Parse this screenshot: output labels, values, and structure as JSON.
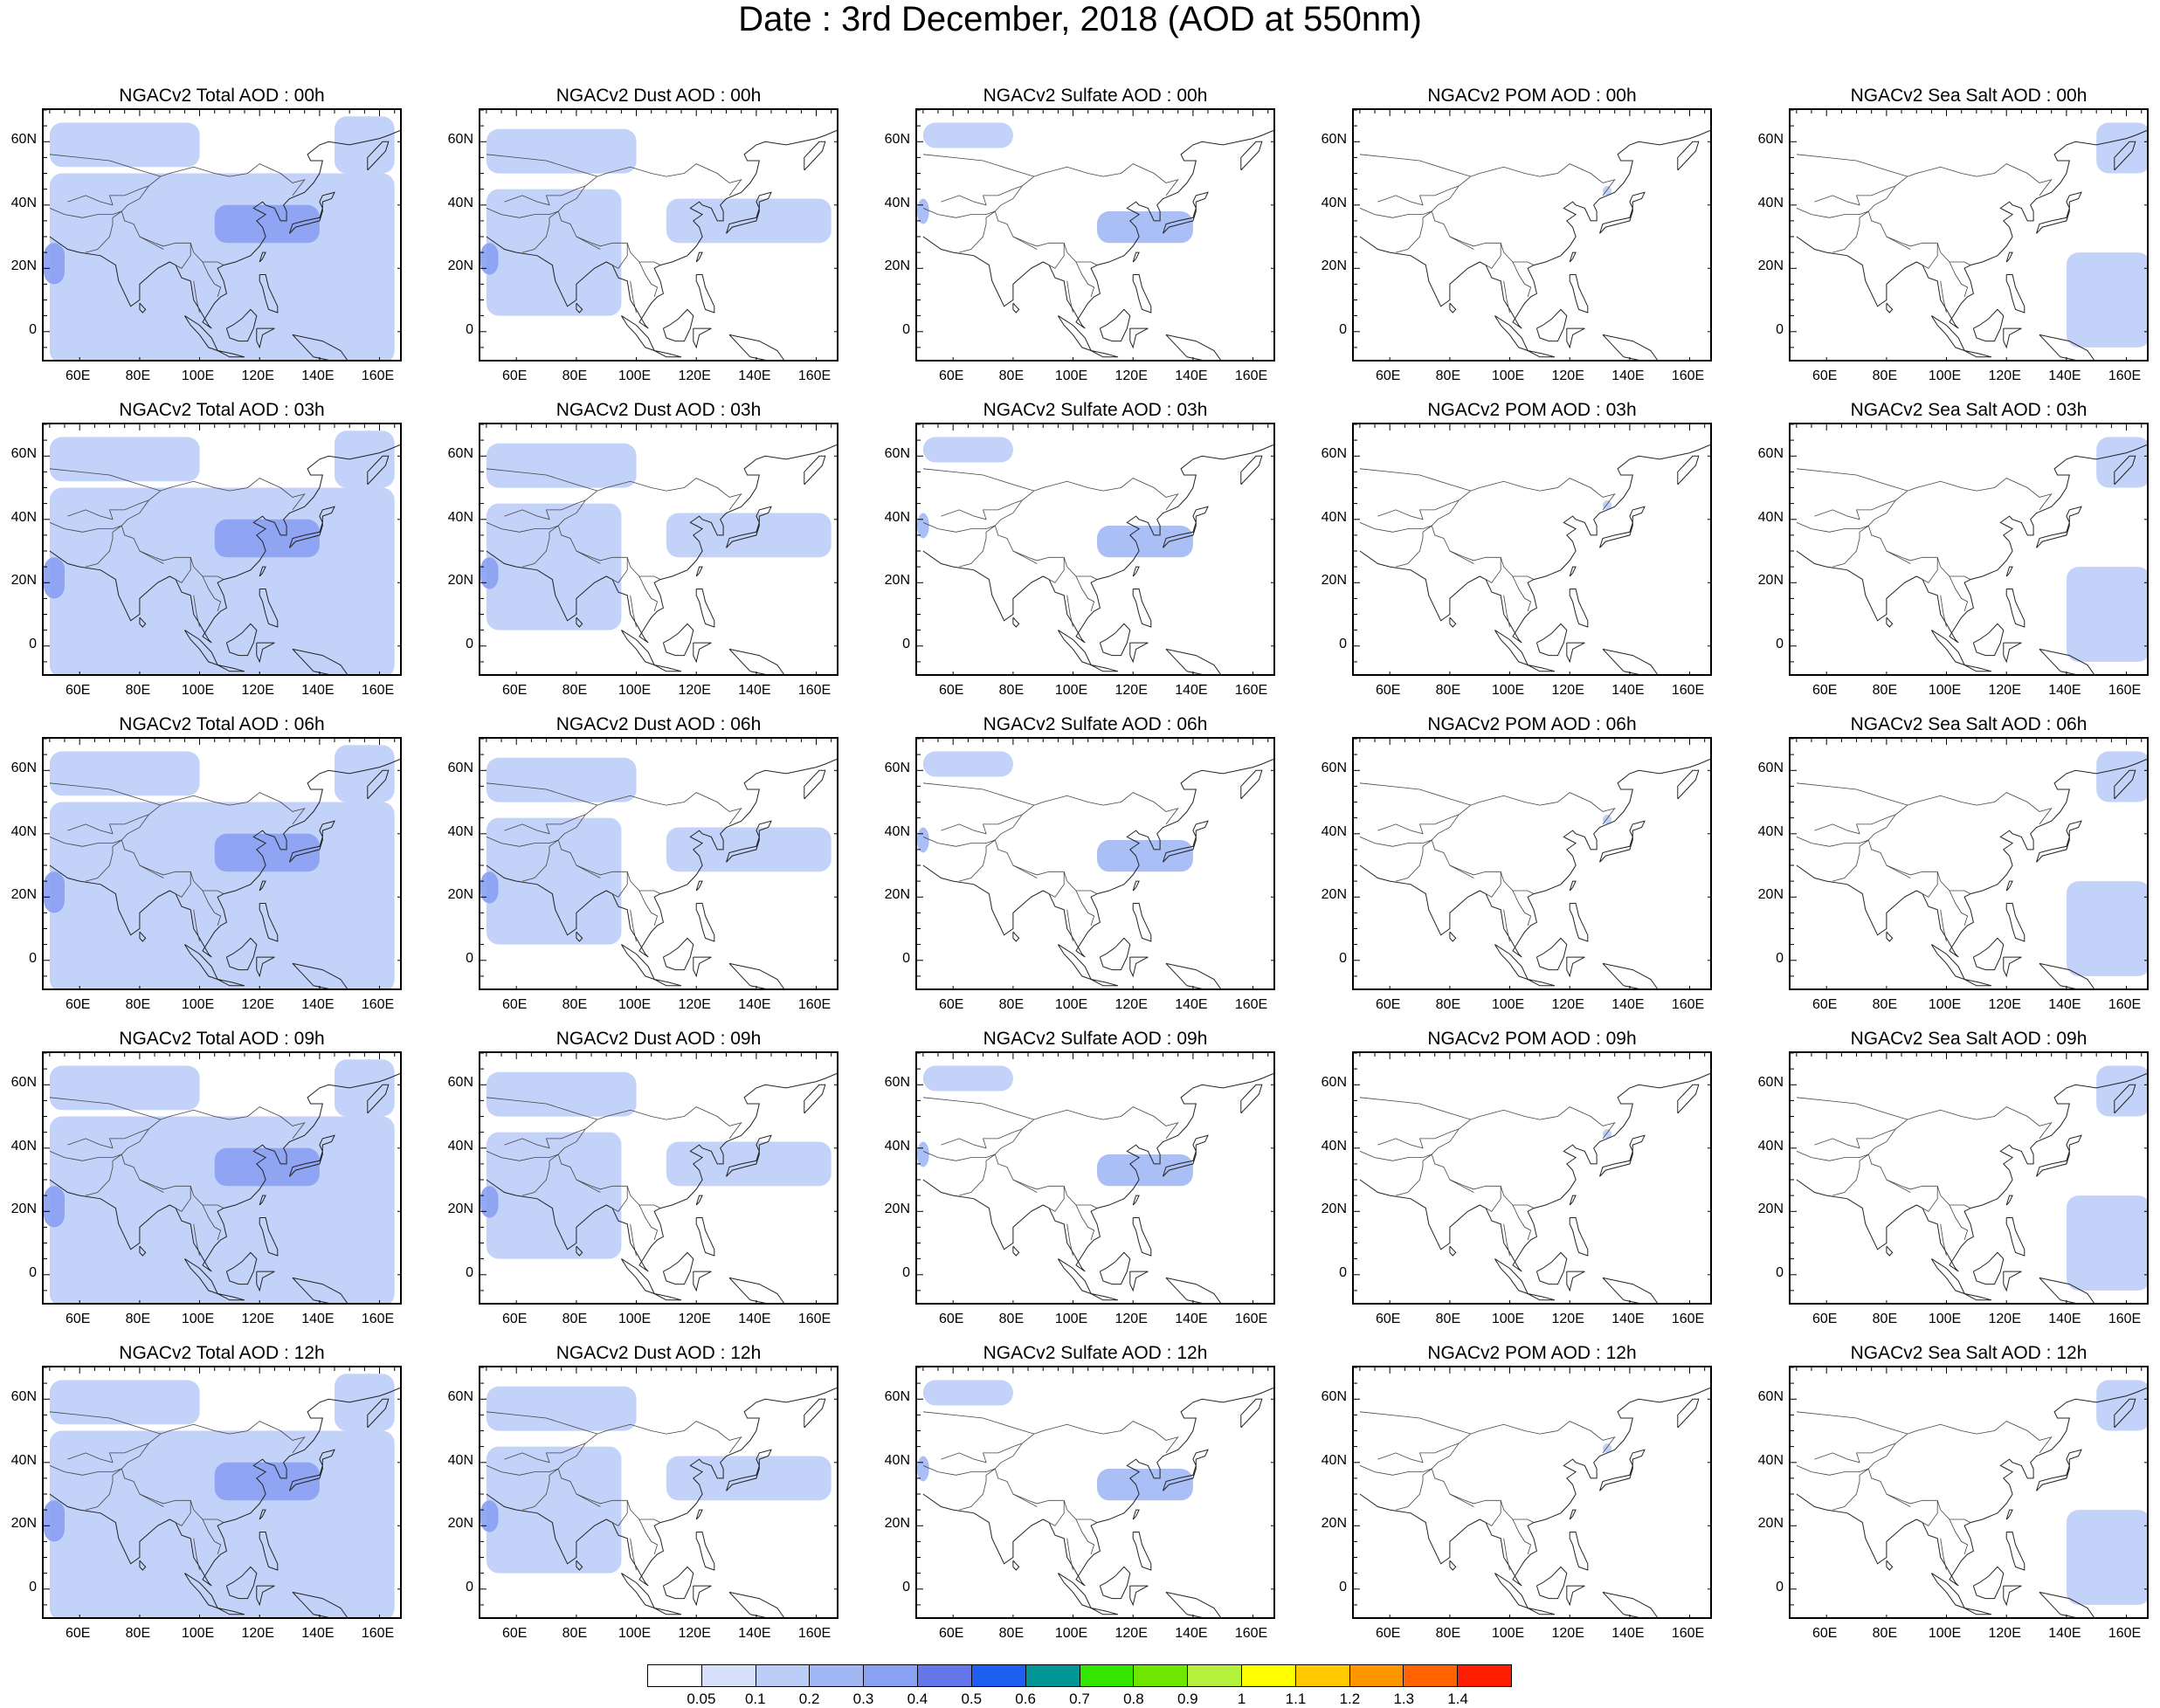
{
  "title": "Date : 3rd December, 2018 (AOD at 550nm)",
  "lat_ticks": [
    "60N",
    "40N",
    "20N",
    "0"
  ],
  "lon_ticks": [
    "60E",
    "80E",
    "100E",
    "120E",
    "140E",
    "160E"
  ],
  "panel_titles": [
    [
      "NGACv2 Total AOD : 00h",
      "NGACv2 Dust AOD : 00h",
      "NGACv2 Sulfate AOD : 00h",
      "NGACv2 POM AOD : 00h",
      "NGACv2 Sea Salt AOD : 00h"
    ],
    [
      "NGACv2 Total AOD : 03h",
      "NGACv2 Dust AOD : 03h",
      "NGACv2 Sulfate AOD : 03h",
      "NGACv2 POM AOD : 03h",
      "NGACv2 Sea Salt AOD : 03h"
    ],
    [
      "NGACv2 Total AOD : 06h",
      "NGACv2 Dust AOD : 06h",
      "NGACv2 Sulfate AOD : 06h",
      "NGACv2 POM AOD : 06h",
      "NGACv2 Sea Salt AOD : 06h"
    ],
    [
      "NGACv2 Total AOD : 09h",
      "NGACv2 Dust AOD : 09h",
      "NGACv2 Sulfate AOD : 09h",
      "NGACv2 POM AOD : 09h",
      "NGACv2 Sea Salt  AOD : 09h"
    ],
    [
      "NGACv2 Total AOD  : 12h",
      "NGACv2 Dust AOD : 12h",
      "NGACv2 Sulfate AOD : 12h",
      "NGACv2 POM  AOD : 12h",
      "NGACv2 Sea Salt  AOD : 12h"
    ]
  ],
  "colorbar": {
    "labels": [
      "0.05",
      "0.1",
      "0.2",
      "0.3",
      "0.4",
      "0.5",
      "0.6",
      "0.7",
      "0.8",
      "0.9",
      "1",
      "1.1",
      "1.2",
      "1.3",
      "1.4"
    ],
    "colors": [
      "#ffffff",
      "#d6e0fb",
      "#bccdf8",
      "#a1b8f5",
      "#8aa0f2",
      "#6478ec",
      "#1e5ff2",
      "#009696",
      "#33e600",
      "#6fe600",
      "#b5f03c",
      "#ffff00",
      "#ffc800",
      "#ff9600",
      "#ff6400",
      "#ff1e00"
    ]
  },
  "chart_data": {
    "type": "map",
    "lon_range": [
      48,
      168
    ],
    "lat_range": [
      -10,
      70
    ],
    "species": [
      "Total",
      "Dust",
      "Sulfate",
      "POM",
      "Sea Salt"
    ],
    "hours": [
      "00h",
      "03h",
      "06h",
      "09h",
      "12h"
    ],
    "aod_regions": {
      "Total": [
        {
          "lon": [
            50,
            100
          ],
          "lat": [
            52,
            66
          ],
          "aod": 0.15
        },
        {
          "lon": [
            50,
            165
          ],
          "lat": [
            -10,
            50
          ],
          "aod": 0.15
        },
        {
          "lon": [
            105,
            140
          ],
          "lat": [
            28,
            40
          ],
          "aod": 0.3
        },
        {
          "lon": [
            145,
            165
          ],
          "lat": [
            50,
            68
          ],
          "aod": 0.15
        },
        {
          "lon": [
            48,
            55
          ],
          "lat": [
            15,
            28
          ],
          "aod": 0.3
        }
      ],
      "Dust": [
        {
          "lon": [
            50,
            100
          ],
          "lat": [
            50,
            64
          ],
          "aod": 0.15
        },
        {
          "lon": [
            50,
            95
          ],
          "lat": [
            5,
            45
          ],
          "aod": 0.15
        },
        {
          "lon": [
            110,
            165
          ],
          "lat": [
            28,
            42
          ],
          "aod": 0.1
        },
        {
          "lon": [
            48,
            54
          ],
          "lat": [
            18,
            28
          ],
          "aod": 0.3
        }
      ],
      "Sulfate": [
        {
          "lon": [
            50,
            80
          ],
          "lat": [
            58,
            66
          ],
          "aod": 0.1
        },
        {
          "lon": [
            108,
            140
          ],
          "lat": [
            28,
            38
          ],
          "aod": 0.2
        },
        {
          "lon": [
            48,
            52
          ],
          "lat": [
            34,
            42
          ],
          "aod": 0.2
        }
      ],
      "POM": [
        {
          "lon": [
            131,
            134
          ],
          "lat": [
            43,
            46
          ],
          "aod": 0.1
        }
      ],
      "Sea Salt": [
        {
          "lon": [
            150,
            168
          ],
          "lat": [
            50,
            66
          ],
          "aod": 0.15
        },
        {
          "lon": [
            140,
            168
          ],
          "lat": [
            -5,
            25
          ],
          "aod": 0.1
        }
      ]
    }
  }
}
